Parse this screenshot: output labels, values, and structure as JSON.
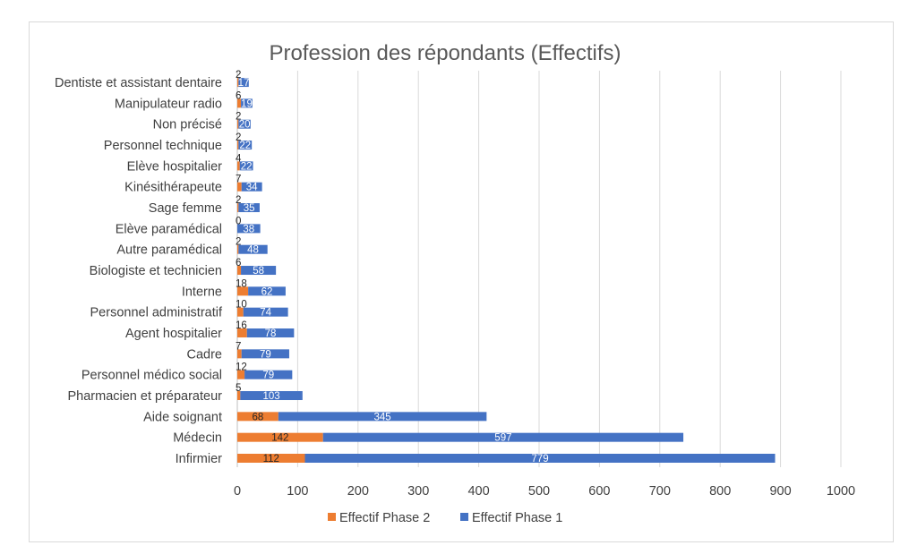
{
  "chart_data": {
    "type": "bar",
    "orientation": "horizontal",
    "stacked": true,
    "title": "Profession des répondants (Effectifs)",
    "xlabel": "",
    "ylabel": "",
    "xlim": [
      0,
      1000
    ],
    "xticks": [
      0,
      100,
      200,
      300,
      400,
      500,
      600,
      700,
      800,
      900,
      1000
    ],
    "grid": "vertical",
    "legend_position": "bottom",
    "categories": [
      "Infirmier",
      "Médecin",
      "Aide soignant",
      "Pharmacien et préparateur",
      "Personnel médico social",
      "Cadre",
      "Agent hospitalier",
      "Personnel administratif",
      "Interne",
      "Biologiste et technicien",
      "Autre paramédical",
      "Elève paramédical",
      "Sage femme",
      "Kinésithérapeute",
      "Elève hospitalier",
      "Personnel technique",
      "Non précisé",
      "Manipulateur radio",
      "Dentiste et assistant dentaire"
    ],
    "series": [
      {
        "name": "Effectif Phase 2",
        "color": "#ED7D31",
        "values": [
          112,
          142,
          68,
          5,
          12,
          7,
          16,
          10,
          18,
          6,
          2,
          0,
          2,
          7,
          4,
          2,
          2,
          6,
          2
        ]
      },
      {
        "name": "Effectif Phase 1",
        "color": "#4472C4",
        "values": [
          779,
          597,
          345,
          103,
          79,
          79,
          78,
          74,
          62,
          58,
          48,
          38,
          35,
          34,
          22,
          22,
          20,
          19,
          17
        ]
      }
    ]
  }
}
